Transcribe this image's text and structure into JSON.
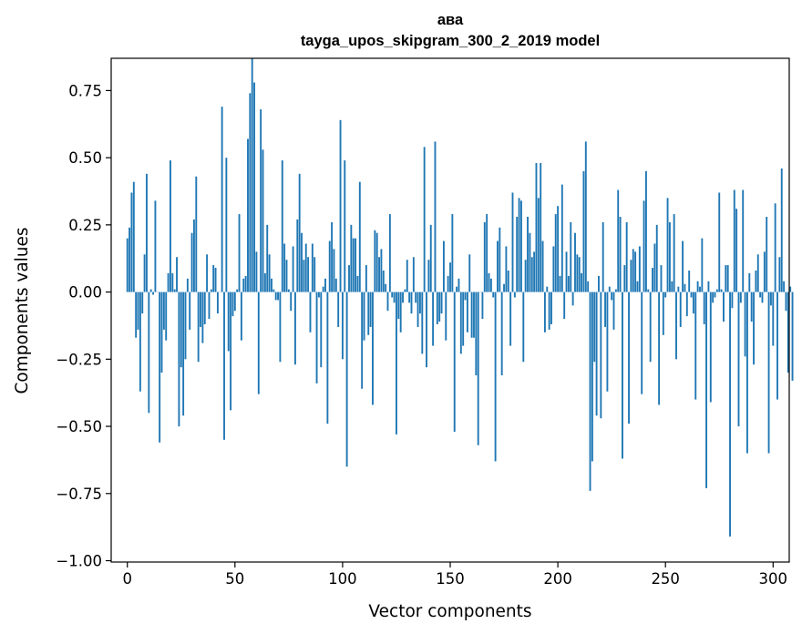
{
  "chart_data": {
    "type": "bar",
    "title": "ава",
    "subtitle": "tayga_upos_skipgram_300_2_2019 model",
    "xlabel": "Vector components",
    "ylabel": "Components values",
    "xlim": [
      -7.5,
      307.5
    ],
    "ylim": [
      -1.005,
      0.87
    ],
    "xticks": [
      0,
      50,
      100,
      150,
      200,
      250,
      300
    ],
    "yticks": [
      0.75,
      0.5,
      0.25,
      0.0,
      -0.25,
      -0.5,
      -0.75,
      -1.0
    ],
    "ytick_labels": [
      "0.75",
      "0.50",
      "0.25",
      "0.00",
      "−0.25",
      "−0.50",
      "−0.75",
      "−1.00"
    ],
    "grid": false,
    "bar_color": "#1f77b4",
    "values": [
      0.2,
      0.24,
      0.37,
      0.41,
      -0.17,
      -0.14,
      -0.37,
      -0.08,
      0.14,
      0.44,
      -0.45,
      0.01,
      -0.01,
      0.34,
      0.0,
      -0.56,
      -0.3,
      -0.14,
      -0.18,
      0.07,
      0.49,
      0.07,
      0.01,
      0.13,
      -0.5,
      -0.28,
      -0.46,
      -0.25,
      0.05,
      -0.14,
      0.22,
      0.27,
      0.43,
      -0.26,
      -0.13,
      -0.19,
      -0.12,
      0.14,
      -0.1,
      0.01,
      0.1,
      0.09,
      -0.08,
      0.0,
      0.69,
      -0.55,
      0.5,
      -0.22,
      -0.44,
      -0.09,
      -0.07,
      0.01,
      0.29,
      -0.18,
      0.05,
      0.06,
      0.57,
      0.74,
      0.87,
      0.78,
      0.15,
      -0.38,
      0.68,
      0.53,
      0.07,
      0.25,
      0.14,
      0.05,
      0.01,
      -0.03,
      -0.03,
      -0.26,
      0.49,
      0.18,
      0.12,
      0.01,
      -0.07,
      0.17,
      -0.27,
      0.27,
      0.44,
      0.22,
      0.12,
      0.18,
      0.13,
      -0.15,
      0.18,
      0.13,
      -0.34,
      -0.02,
      -0.28,
      0.02,
      0.05,
      -0.49,
      0.19,
      0.26,
      0.16,
      0.05,
      -0.13,
      0.64,
      -0.25,
      0.49,
      -0.65,
      0.1,
      0.25,
      0.2,
      0.2,
      0.06,
      0.41,
      -0.36,
      -0.18,
      0.1,
      -0.16,
      -0.13,
      -0.42,
      0.23,
      0.22,
      0.13,
      0.16,
      0.08,
      0.03,
      -0.07,
      0.29,
      -0.02,
      -0.04,
      -0.53,
      -0.1,
      -0.15,
      -0.04,
      0.01,
      0.12,
      -0.04,
      -0.08,
      0.13,
      -0.04,
      -0.13,
      -0.08,
      -0.23,
      0.54,
      -0.28,
      0.12,
      0.25,
      -0.2,
      0.56,
      -0.12,
      -0.11,
      -0.08,
      0.19,
      -0.18,
      0.06,
      0.11,
      0.29,
      -0.52,
      0.02,
      0.05,
      -0.23,
      -0.2,
      -0.03,
      -0.15,
      0.14,
      -0.17,
      -0.17,
      -0.31,
      -0.57,
      0.0,
      -0.1,
      0.26,
      0.29,
      0.07,
      0.05,
      -0.02,
      -0.63,
      0.19,
      0.24,
      -0.31,
      0.03,
      0.17,
      0.08,
      -0.2,
      0.37,
      -0.02,
      0.28,
      0.35,
      0.34,
      -0.26,
      0.12,
      0.28,
      0.22,
      0.13,
      0.15,
      0.48,
      0.35,
      0.48,
      0.19,
      -0.15,
      0.02,
      -0.14,
      -0.12,
      0.17,
      0.29,
      0.32,
      0.06,
      0.4,
      -0.1,
      0.15,
      0.06,
      0.26,
      -0.05,
      0.22,
      0.14,
      0.13,
      0.07,
      0.45,
      0.56,
      0.04,
      -0.74,
      -0.63,
      -0.26,
      -0.46,
      0.06,
      -0.47,
      0.26,
      -0.13,
      -0.37,
      0.02,
      -0.03,
      -0.14,
      0.01,
      0.38,
      0.28,
      -0.62,
      0.1,
      0.26,
      -0.49,
      0.12,
      0.16,
      0.15,
      0.04,
      0.17,
      -0.38,
      0.34,
      0.45,
      0.01,
      -0.26,
      0.09,
      0.18,
      0.25,
      -0.42,
      0.1,
      -0.16,
      -0.02,
      0.35,
      0.26,
      0.04,
      0.29,
      -0.25,
      0.02,
      -0.13,
      0.19,
      0.03,
      -0.09,
      0.08,
      -0.02,
      -0.08,
      -0.4,
      0.04,
      0.02,
      0.2,
      -0.12,
      -0.73,
      0.04,
      -0.41,
      -0.04,
      -0.02,
      0.01,
      0.37,
      0.01,
      -0.11,
      0.1,
      0.1,
      -0.91,
      -0.06,
      0.38,
      0.31,
      -0.5,
      -0.04,
      0.38,
      -0.24,
      -0.6,
      0.07,
      -0.11,
      -0.27,
      0.08,
      0.14,
      -0.02,
      -0.04,
      0.15,
      0.28,
      -0.6,
      -0.05,
      -0.2,
      0.33,
      -0.4,
      0.13,
      0.46,
      0.04,
      -0.07,
      -0.3,
      0.02,
      -0.33
    ]
  }
}
